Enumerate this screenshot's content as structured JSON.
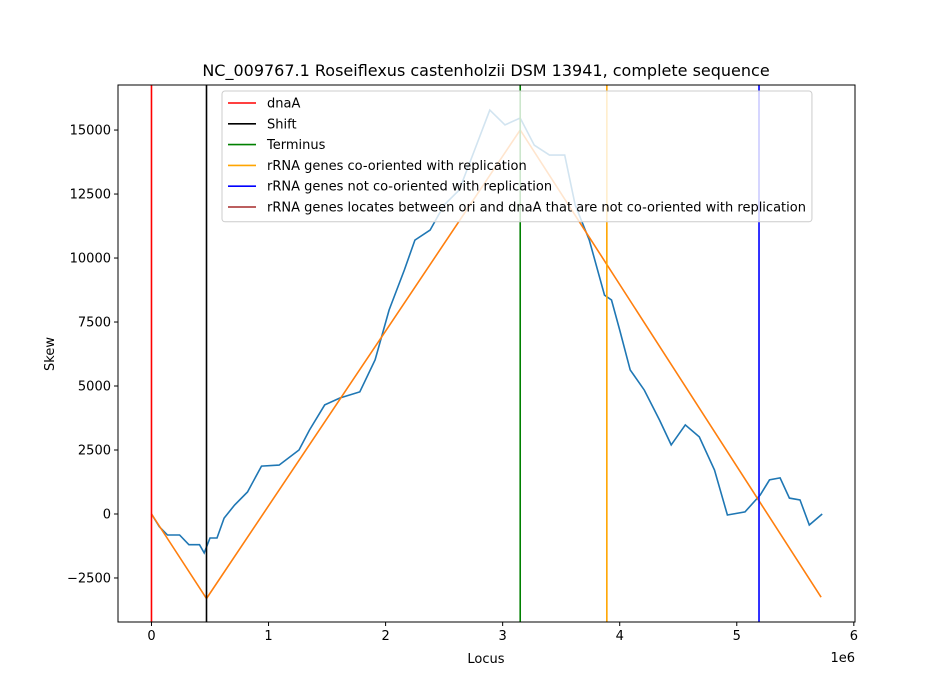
{
  "chart_data": {
    "type": "line",
    "title": "NC_009767.1 Roseiflexus castenholzii DSM 13941, complete sequence",
    "x_label": "Locus",
    "y_label": "Skew",
    "x_offset_label": "1e6",
    "xlim": [
      -286000,
      6010000
    ],
    "ylim": [
      -4220,
      16760
    ],
    "xticks": [
      0,
      {
        "value": 1000000,
        "label": "1"
      },
      {
        "value": 2000000,
        "label": "2"
      },
      {
        "value": 3000000,
        "label": "3"
      },
      {
        "value": 4000000,
        "label": "4"
      },
      {
        "value": 5000000,
        "label": "5"
      },
      {
        "value": 6000000,
        "label": "6"
      }
    ],
    "yticks": [
      {
        "value": -2500,
        "label": "−2500"
      },
      0,
      2500,
      5000,
      7500,
      10000,
      12500,
      15000
    ],
    "legend": "upper center",
    "series": [
      {
        "color": "#1f77b4",
        "x": [
          0,
          68000,
          137000,
          240000,
          320000,
          410000,
          450000,
          500000,
          560000,
          620000,
          710000,
          820000,
          940000,
          1090000,
          1260000,
          1350000,
          1480000,
          1610000,
          1780000,
          1910000,
          2030000,
          2160000,
          2250000,
          2380000,
          2500000,
          2630000,
          2760000,
          2890000,
          3020000,
          3150000,
          3270000,
          3400000,
          3530000,
          3620000,
          3740000,
          3870000,
          3930000,
          4000000,
          4090000,
          4210000,
          4340000,
          4440000,
          4560000,
          4680000,
          4810000,
          4920000,
          5070000,
          5200000,
          5280000,
          5370000,
          5450000,
          5540000,
          5620000,
          5730000
        ],
        "values": [
          0,
          -500,
          -820,
          -820,
          -1200,
          -1200,
          -1520,
          -940,
          -940,
          -160,
          350,
          860,
          1870,
          1910,
          2500,
          3280,
          4260,
          4530,
          4770,
          6020,
          7970,
          9530,
          10700,
          11090,
          12070,
          12660,
          14220,
          15780,
          15200,
          15470,
          14410,
          14020,
          14020,
          12070,
          10700,
          8550,
          8360,
          7190,
          5630,
          4840,
          3670,
          2700,
          3480,
          3010,
          1720,
          -40,
          80,
          740,
          1330,
          1410,
          620,
          550,
          -430,
          0
        ]
      },
      {
        "color": "#ff7f0e",
        "x": [
          0,
          470000,
          3150000,
          5720000
        ],
        "values": [
          0,
          -3300,
          15000,
          -3250
        ]
      }
    ],
    "vlines": [
      {
        "name": "dnaA",
        "color": "#ff0000",
        "x": 0
      },
      {
        "name": "Shift",
        "color": "#000000",
        "x": 470000
      },
      {
        "name": "Terminus",
        "color": "#008000",
        "x": 3150000
      },
      {
        "name": "rRNA genes co-oriented with replication",
        "color": "#ffa500",
        "x": 3890000
      },
      {
        "name": "rRNA genes not co-oriented with replication",
        "color": "#0000ff",
        "x": 5190000
      },
      {
        "name": "rRNA genes locates between ori and dnaA that are not co-oriented with replication",
        "color": "#a52a2a",
        "x": null
      }
    ]
  }
}
